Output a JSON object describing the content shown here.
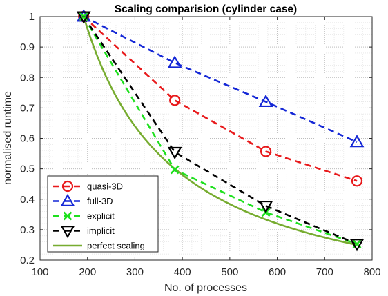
{
  "chart_data": {
    "type": "line",
    "title": "Scaling comparision (cylinder case)",
    "xlabel": "No. of processes",
    "ylabel": "normalised runtime",
    "xlim": [
      100,
      800
    ],
    "ylim": [
      0.2,
      1.0
    ],
    "xticks": [
      "100",
      "200",
      "300",
      "400",
      "500",
      "600",
      "700",
      "800"
    ],
    "yticks": [
      "0.2",
      "0.3",
      "0.4",
      "0.5",
      "0.6",
      "0.7",
      "0.8",
      "0.9",
      "1"
    ],
    "grid": "major and minor, dotted",
    "legend_position": "bottom-left",
    "series": [
      {
        "name": "quasi-3D",
        "color": "#e8191b",
        "linestyle": "dashed",
        "marker": "circle",
        "x": [
          192,
          384,
          576,
          768
        ],
        "y": [
          1.0,
          0.725,
          0.557,
          0.46
        ]
      },
      {
        "name": "full-3D",
        "color": "#1427d6",
        "linestyle": "dashed",
        "marker": "triangle-up",
        "x": [
          192,
          384,
          576,
          768
        ],
        "y": [
          1.0,
          0.848,
          0.72,
          0.588
        ]
      },
      {
        "name": "explicit",
        "color": "#1ee01e",
        "linestyle": "dashed",
        "marker": "x",
        "x": [
          192,
          384,
          576,
          768
        ],
        "y": [
          1.0,
          0.497,
          0.357,
          0.253
        ]
      },
      {
        "name": "implicit",
        "color": "#000000",
        "linestyle": "dashed",
        "marker": "triangle-down",
        "x": [
          192,
          384,
          576,
          768
        ],
        "y": [
          1.0,
          0.555,
          0.378,
          0.253
        ]
      },
      {
        "name": "perfect scaling",
        "color": "#77ac30",
        "linestyle": "solid",
        "marker": "none",
        "function": "192/x",
        "x": [
          192,
          768
        ],
        "y": [
          1.0,
          0.25
        ]
      }
    ]
  }
}
